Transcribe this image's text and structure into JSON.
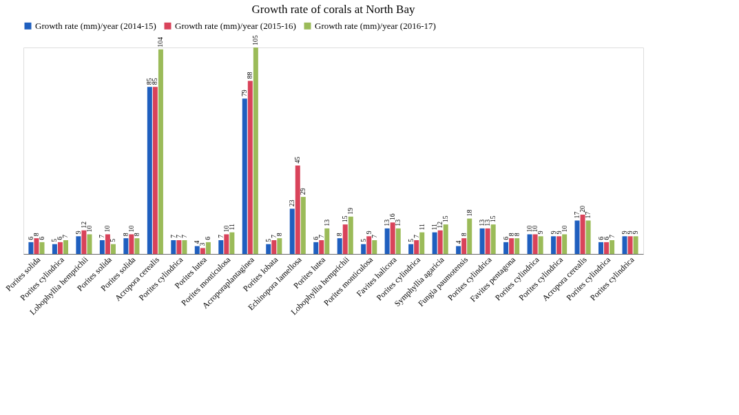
{
  "chart_data": {
    "type": "bar",
    "title": "Growth rate of corals at North Bay",
    "categories": [
      "Porites solida",
      "Porites cylindrica",
      "Lobophyllia hemprichii",
      "Porites solida",
      "Porites solida",
      "Acropora cerealis",
      "Porites cylindrica",
      "Porites lutea",
      "Porites monticulosa",
      "Acroporaplantaginea",
      "Porites lobata",
      "Echinopora lamellosa",
      "Porites lutea",
      "Lobophyllia hemprichii",
      "Porites monticulosa",
      "Favites halicora",
      "Porites cylindrica",
      "Symphyllia agaricia",
      "Fungia paumotensis",
      "Porites cylindrica",
      "Favites pentagona",
      "Porites cylindrica",
      "Porites cylindrica",
      "Acropora cerealis",
      "Porites cylindrica",
      "Porites cylindrica"
    ],
    "series": [
      {
        "name": "Growth rate (mm)/year (2014-15)",
        "color": "#1f5fbf",
        "values": [
          6,
          5,
          9,
          7,
          8,
          85,
          7,
          4,
          7,
          79,
          5,
          23,
          6,
          8,
          5,
          13,
          5,
          11,
          4,
          13,
          6,
          10,
          9,
          17,
          6,
          9
        ]
      },
      {
        "name": "Growth rate (mm)/year (2015-16)",
        "color": "#d9435a",
        "values": [
          8,
          6,
          12,
          10,
          10,
          85,
          7,
          3,
          10,
          88,
          7,
          45,
          7,
          15,
          9,
          16,
          7,
          12,
          8,
          13,
          8,
          10,
          9,
          20,
          6,
          9
        ]
      },
      {
        "name": "Growth rate (mm)/year (2016-17)",
        "color": "#9bbb59",
        "values": [
          6,
          7,
          10,
          5,
          8,
          104,
          7,
          6,
          11,
          105,
          8,
          29,
          13,
          19,
          7,
          13,
          11,
          15,
          18,
          15,
          8,
          9,
          10,
          17,
          7,
          9
        ]
      }
    ],
    "data_labels": true,
    "legend": "top",
    "grid": false
  }
}
